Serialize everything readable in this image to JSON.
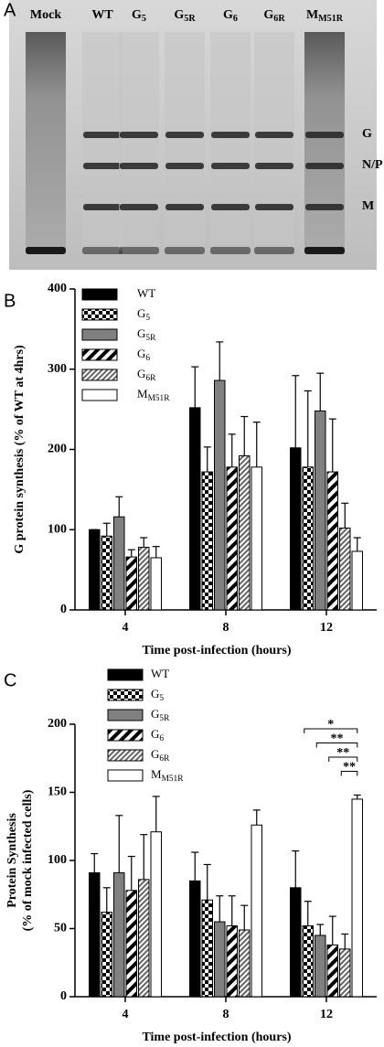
{
  "gel": {
    "panel_label": "A",
    "lanes": [
      "Mock",
      "WT",
      "G5",
      "G5R",
      "G6",
      "G6R",
      "MM51R"
    ],
    "bands": [
      "G",
      "N/P",
      "M"
    ]
  },
  "chart_data": [
    {
      "type": "bar",
      "panel_label": "B",
      "ylabel": [
        "G protein synthesis (% of WT at 4hrs)"
      ],
      "xlabel": "Time post-infection (hours)",
      "categories": [
        "4",
        "8",
        "12"
      ],
      "ylim": [
        0,
        400
      ],
      "yticks": [
        0,
        100,
        200,
        300,
        400
      ],
      "series": [
        {
          "name": "WT",
          "color": "#000000",
          "values": [
            100,
            252,
            202
          ],
          "errors": [
            0,
            51,
            90
          ]
        },
        {
          "name": "G5",
          "color": "#000000",
          "pattern": "checker",
          "values": [
            92,
            172,
            178
          ],
          "errors": [
            16,
            31,
            95
          ]
        },
        {
          "name": "G5R",
          "color": "#808080",
          "values": [
            116,
            286,
            248
          ],
          "errors": [
            25,
            48,
            47
          ]
        },
        {
          "name": "G6",
          "color": "#000000",
          "pattern": "stripe",
          "values": [
            66,
            178,
            172
          ],
          "errors": [
            9,
            41,
            66
          ]
        },
        {
          "name": "G6R",
          "color": "#808080",
          "pattern": "hatch",
          "values": [
            78,
            192,
            102
          ],
          "errors": [
            12,
            49,
            31
          ]
        },
        {
          "name": "MM51R",
          "color": "#ffffff",
          "values": [
            65,
            178,
            73
          ],
          "errors": [
            14,
            56,
            17
          ]
        }
      ]
    },
    {
      "type": "bar",
      "panel_label": "C",
      "ylabel": [
        "Protein Synthesis",
        "(% of mock infected cells)"
      ],
      "xlabel": "Time post-infection (hours)",
      "categories": [
        "4",
        "8",
        "12"
      ],
      "ylim": [
        0,
        200
      ],
      "yticks": [
        0,
        50,
        100,
        150,
        200
      ],
      "annotations": [
        "*",
        "**",
        "**",
        "**"
      ],
      "series": [
        {
          "name": "WT",
          "color": "#000000",
          "values": [
            91,
            85,
            80
          ],
          "errors": [
            14,
            21,
            27
          ]
        },
        {
          "name": "G5",
          "color": "#000000",
          "pattern": "checker",
          "values": [
            62,
            71,
            52
          ],
          "errors": [
            18,
            26,
            18
          ]
        },
        {
          "name": "G5R",
          "color": "#808080",
          "values": [
            91,
            55,
            45
          ],
          "errors": [
            42,
            19,
            8
          ]
        },
        {
          "name": "G6",
          "color": "#000000",
          "pattern": "stripe",
          "values": [
            78,
            52,
            38
          ],
          "errors": [
            25,
            22,
            21
          ]
        },
        {
          "name": "G6R",
          "color": "#808080",
          "pattern": "hatch",
          "values": [
            86,
            49,
            35
          ],
          "errors": [
            33,
            18,
            11
          ]
        },
        {
          "name": "MM51R",
          "color": "#ffffff",
          "values": [
            121,
            126,
            145
          ],
          "errors": [
            26,
            11,
            3
          ]
        }
      ]
    }
  ]
}
